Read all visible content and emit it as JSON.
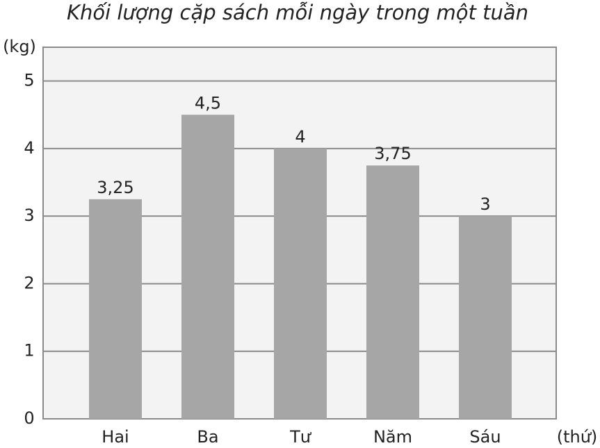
{
  "chart_data": {
    "type": "bar",
    "title": "Khối lượng cặp sách mỗi ngày trong một tuần",
    "y_label": "(kg)",
    "x_label": "(thứ)",
    "categories": [
      "Hai",
      "Ba",
      "Tư",
      "Năm",
      "Sáu"
    ],
    "values": [
      3.25,
      4.5,
      4,
      3.75,
      3
    ],
    "value_labels": [
      "3,25",
      "4,5",
      "4",
      "3,75",
      "3"
    ],
    "color": "#a6a6a6",
    "ylim": [
      0,
      5.5
    ],
    "yticks": [
      0,
      1,
      2,
      3,
      4,
      5
    ],
    "grid": true
  }
}
